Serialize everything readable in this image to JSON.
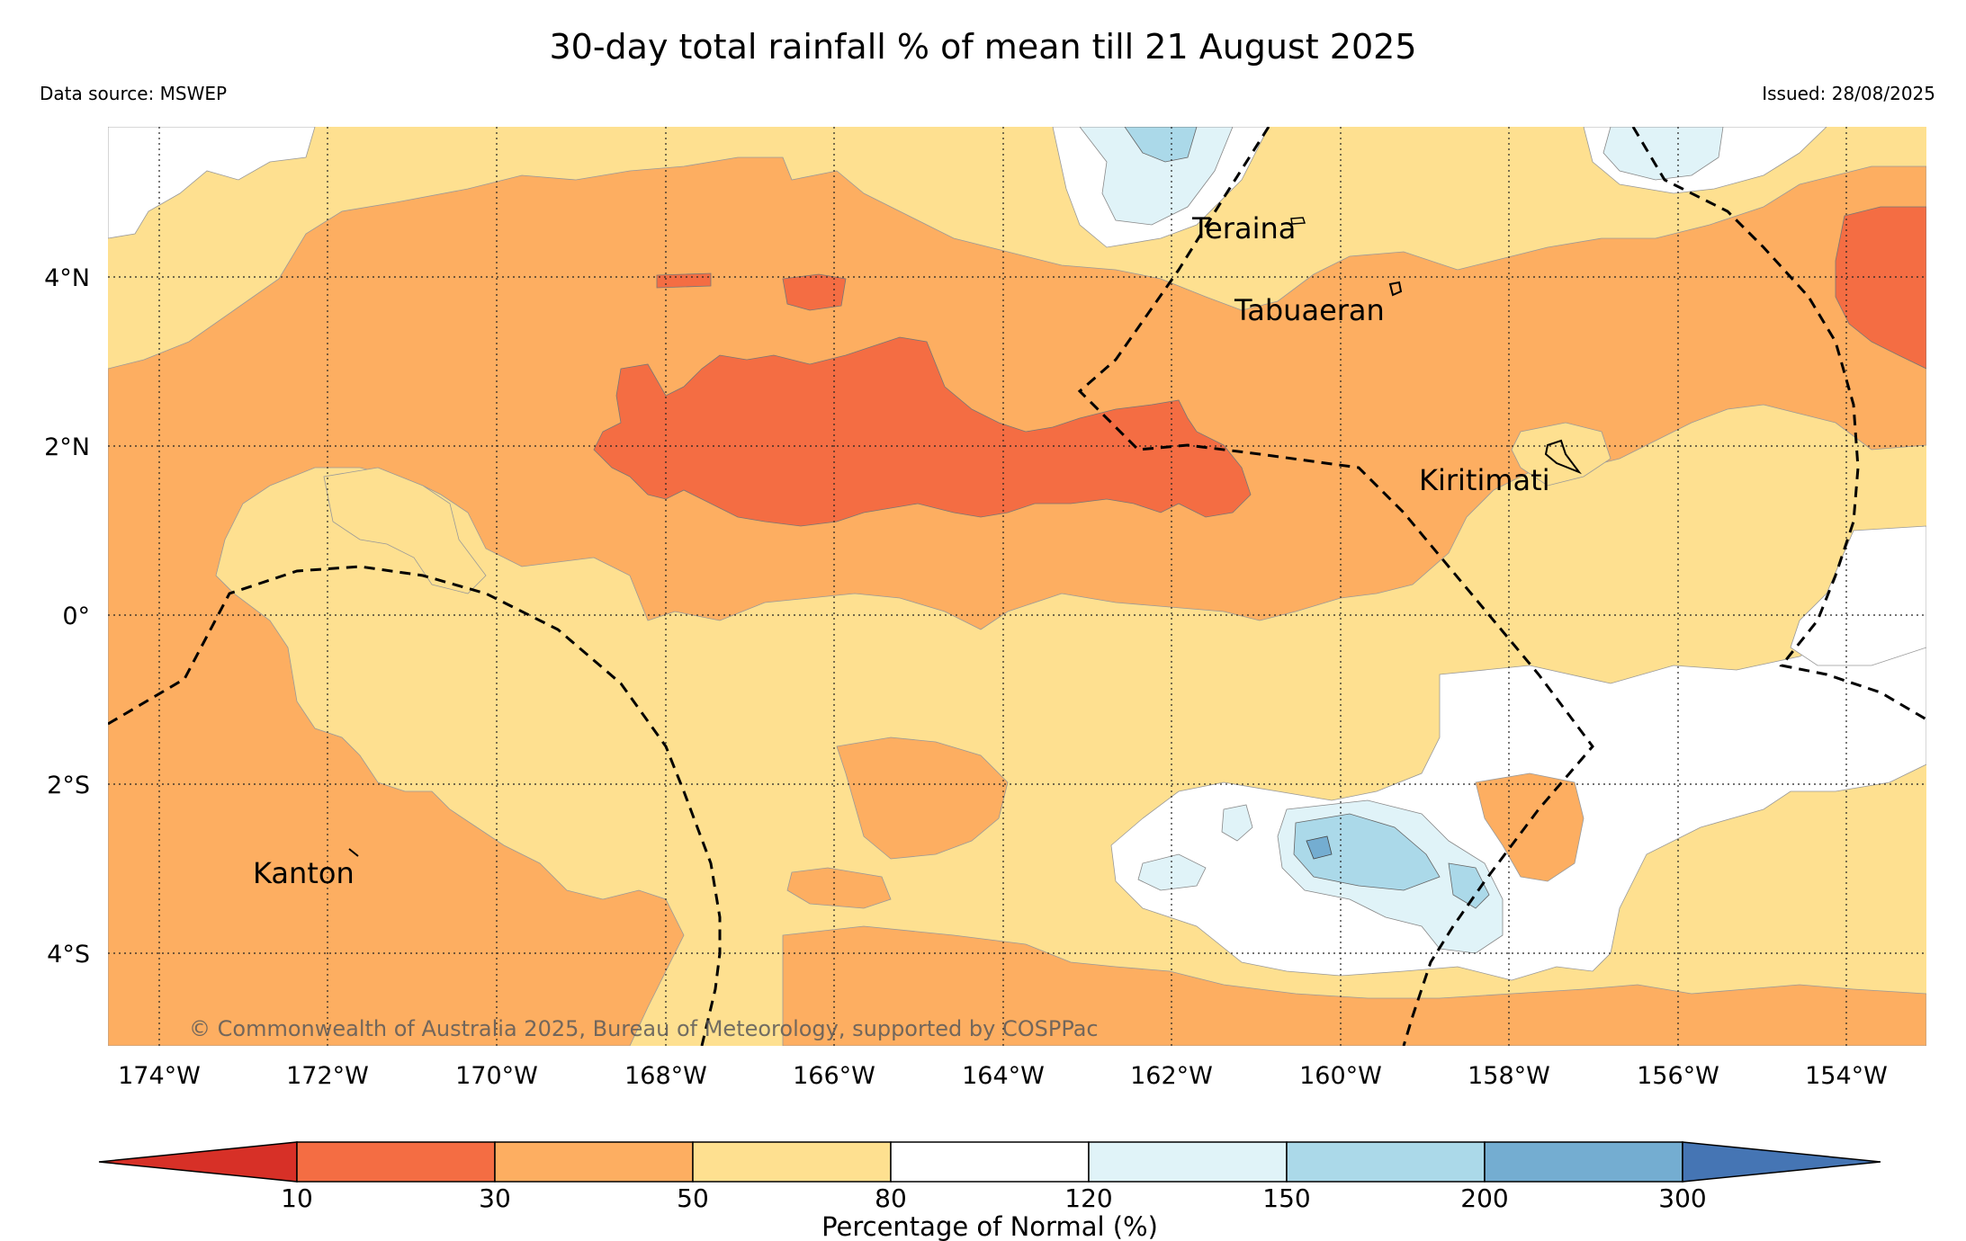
{
  "title": "30-day total rainfall % of mean till 21 August 2025",
  "data_source": "Data source: MSWEP",
  "issued": "Issued: 28/08/2025",
  "copyright": "© Commonwealth of Australia 2025, Bureau of Meteorology, supported by COSPPac",
  "map": {
    "lon_ticks": [
      "174°W",
      "172°W",
      "170°W",
      "168°W",
      "166°W",
      "164°W",
      "162°W",
      "160°W",
      "158°W",
      "156°W",
      "154°W"
    ],
    "lat_ticks": [
      "4°N",
      "2°N",
      "0°",
      "2°S",
      "4°S"
    ],
    "places": [
      "Teraina",
      "Tabuaeran",
      "Kiritimati",
      "Kanton"
    ]
  },
  "colorbar": {
    "label": "Percentage of Normal (%)",
    "ticks": [
      "10",
      "30",
      "50",
      "80",
      "120",
      "150",
      "200",
      "300"
    ],
    "colors": {
      "lt10": "#d73027",
      "c10_30": "#f46d43",
      "c30_50": "#fdae61",
      "c50_80": "#fee090",
      "c80_120": "#ffffff",
      "c120_150": "#e0f3f8",
      "c150_200": "#abd9e9",
      "c200_300": "#74add1",
      "gt300": "#4575b4"
    }
  }
}
